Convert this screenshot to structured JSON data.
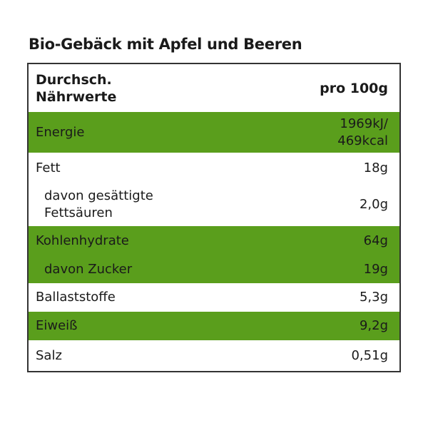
{
  "title": "Bio-Gebäck mit Apfel und Beeren",
  "colors": {
    "green": "#5a9e1c",
    "border": "#333333"
  },
  "header": {
    "label_line1": "Durchsch.",
    "label_line2": "Nährwerte",
    "value": "pro 100g"
  },
  "rows": [
    {
      "label": "Energie",
      "value_line1": "1969kJ/",
      "value_line2": "469kcal",
      "green": true
    },
    {
      "label": "Fett",
      "value": "18g",
      "green": false
    },
    {
      "label_line1": "davon gesättigte",
      "label_line2": "Fettsäuren",
      "value": "2,0g",
      "green": false,
      "sub": true
    },
    {
      "label": "Kohlenhydrate",
      "value": "64g",
      "green": true
    },
    {
      "label": "davon Zucker",
      "value": "19g",
      "green": true,
      "sub": true
    },
    {
      "label": "Ballaststoffe",
      "value": "5,3g",
      "green": false
    },
    {
      "label": "Eiweiß",
      "value": "9,2g",
      "green": true
    },
    {
      "label": "Salz",
      "value": "0,51g",
      "green": false
    }
  ]
}
